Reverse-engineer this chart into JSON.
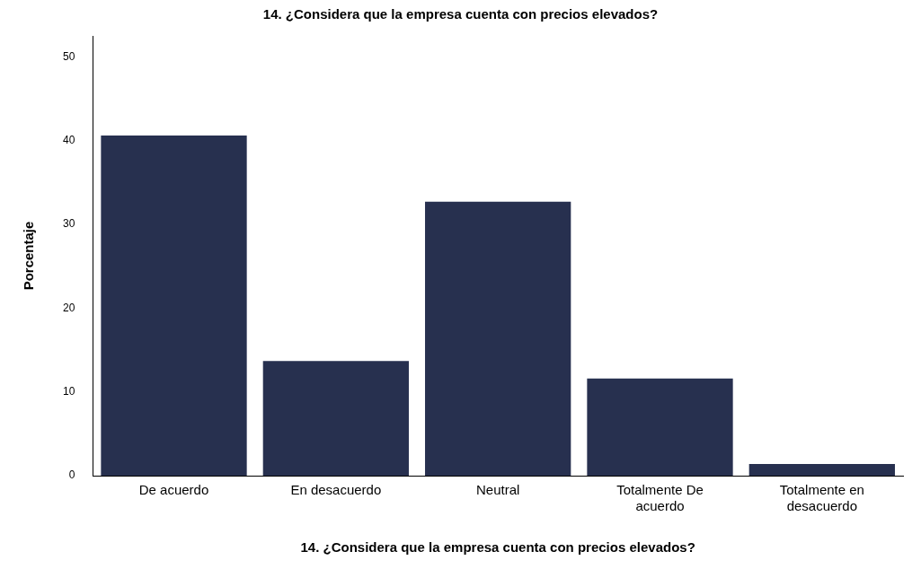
{
  "chart_data": {
    "type": "bar",
    "title": "14. ¿Considera que la empresa cuenta con precios elevados?",
    "xlabel": "14. ¿Considera que la empresa cuenta con precios elevados?",
    "ylabel": "Porcentaje",
    "categories": [
      "De acuerdo",
      "En desacuerdo",
      "Neutral",
      "Totalmente De acuerdo",
      "Totalmente en desacuerdo"
    ],
    "values": [
      40.6,
      13.7,
      32.7,
      11.6,
      1.4
    ],
    "color": "#27304f",
    "ylim": [
      0,
      52.5
    ],
    "yticks": [
      0,
      10,
      20,
      30,
      40,
      50
    ],
    "grid": false,
    "legend": false
  }
}
